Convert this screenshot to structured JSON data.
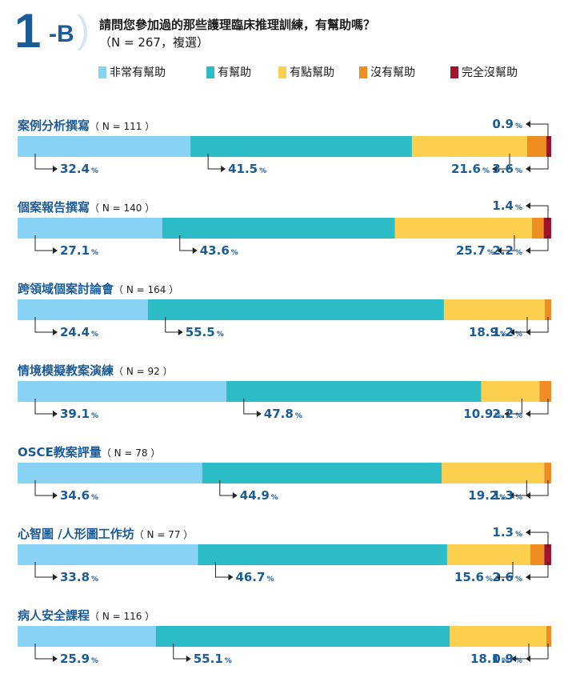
{
  "header": {
    "code_number": "1",
    "code_suffix": "-B",
    "question": "請問您參加過的那些護理臨床推理訓練，有幫助嗎？",
    "sample": "（N = 267，複選）"
  },
  "colors": {
    "very_helpful": "#88d3f4",
    "helpful": "#2bbcc6",
    "somewhat_helpful": "#fcd04e",
    "not_helpful": "#f08d22",
    "not_at_all_helpful": "#a0152e",
    "label_blue": "#1b5c98"
  },
  "chart_data": {
    "type": "bar",
    "orientation": "horizontal",
    "stacked": true,
    "percent_unit": "%",
    "legend_placement": "top",
    "series": [
      {
        "name": "非常有幫助"
      },
      {
        "name": "有幫助"
      },
      {
        "name": "有點幫助"
      },
      {
        "name": "沒有幫助"
      },
      {
        "name": "完全沒幫助"
      }
    ],
    "rows": [
      {
        "label": "案例分析撰寫",
        "n_label": "（ N = 111 ）",
        "values": [
          32.4,
          41.5,
          21.6,
          3.6,
          0.9
        ],
        "value_labels": [
          "32.4",
          "41.5",
          "21.6",
          "3.6",
          "0.9"
        ]
      },
      {
        "label": "個案報告撰寫",
        "n_label": "（ N = 140 ）",
        "values": [
          27.1,
          43.6,
          25.7,
          2.2,
          1.4
        ],
        "value_labels": [
          "27.1",
          "43.6",
          "25.7",
          "2.2",
          "1.4"
        ]
      },
      {
        "label": "跨領域個案討論會",
        "n_label": "（ N = 164 ）",
        "values": [
          24.4,
          55.5,
          18.9,
          1.2,
          0
        ],
        "value_labels": [
          "24.4",
          "55.5",
          "18.9",
          "1.2",
          ""
        ]
      },
      {
        "label": "情境模擬教案演練",
        "n_label": "（ N = 92 ）",
        "values": [
          39.1,
          47.8,
          10.9,
          2.2,
          0
        ],
        "value_labels": [
          "39.1",
          "47.8",
          "10.9",
          "2.2",
          ""
        ]
      },
      {
        "label": "OSCE教案評量",
        "n_label": "（ N = 78 ）",
        "values": [
          34.6,
          44.9,
          19.2,
          1.3,
          0
        ],
        "value_labels": [
          "34.6",
          "44.9",
          "19.2",
          "1.3",
          ""
        ]
      },
      {
        "label": "心智圖 /人形圖工作坊",
        "n_label": "（ N = 77 ）",
        "values": [
          33.8,
          46.7,
          15.6,
          2.6,
          1.3
        ],
        "value_labels": [
          "33.8",
          "46.7",
          "15.6",
          "2.6",
          "1.3"
        ]
      },
      {
        "label": "病人安全課程",
        "n_label": "（ N = 116 ）",
        "values": [
          25.9,
          55.1,
          18.1,
          0.9,
          0
        ],
        "value_labels": [
          "25.9",
          "55.1",
          "18.1",
          "0.9",
          ""
        ]
      }
    ]
  }
}
